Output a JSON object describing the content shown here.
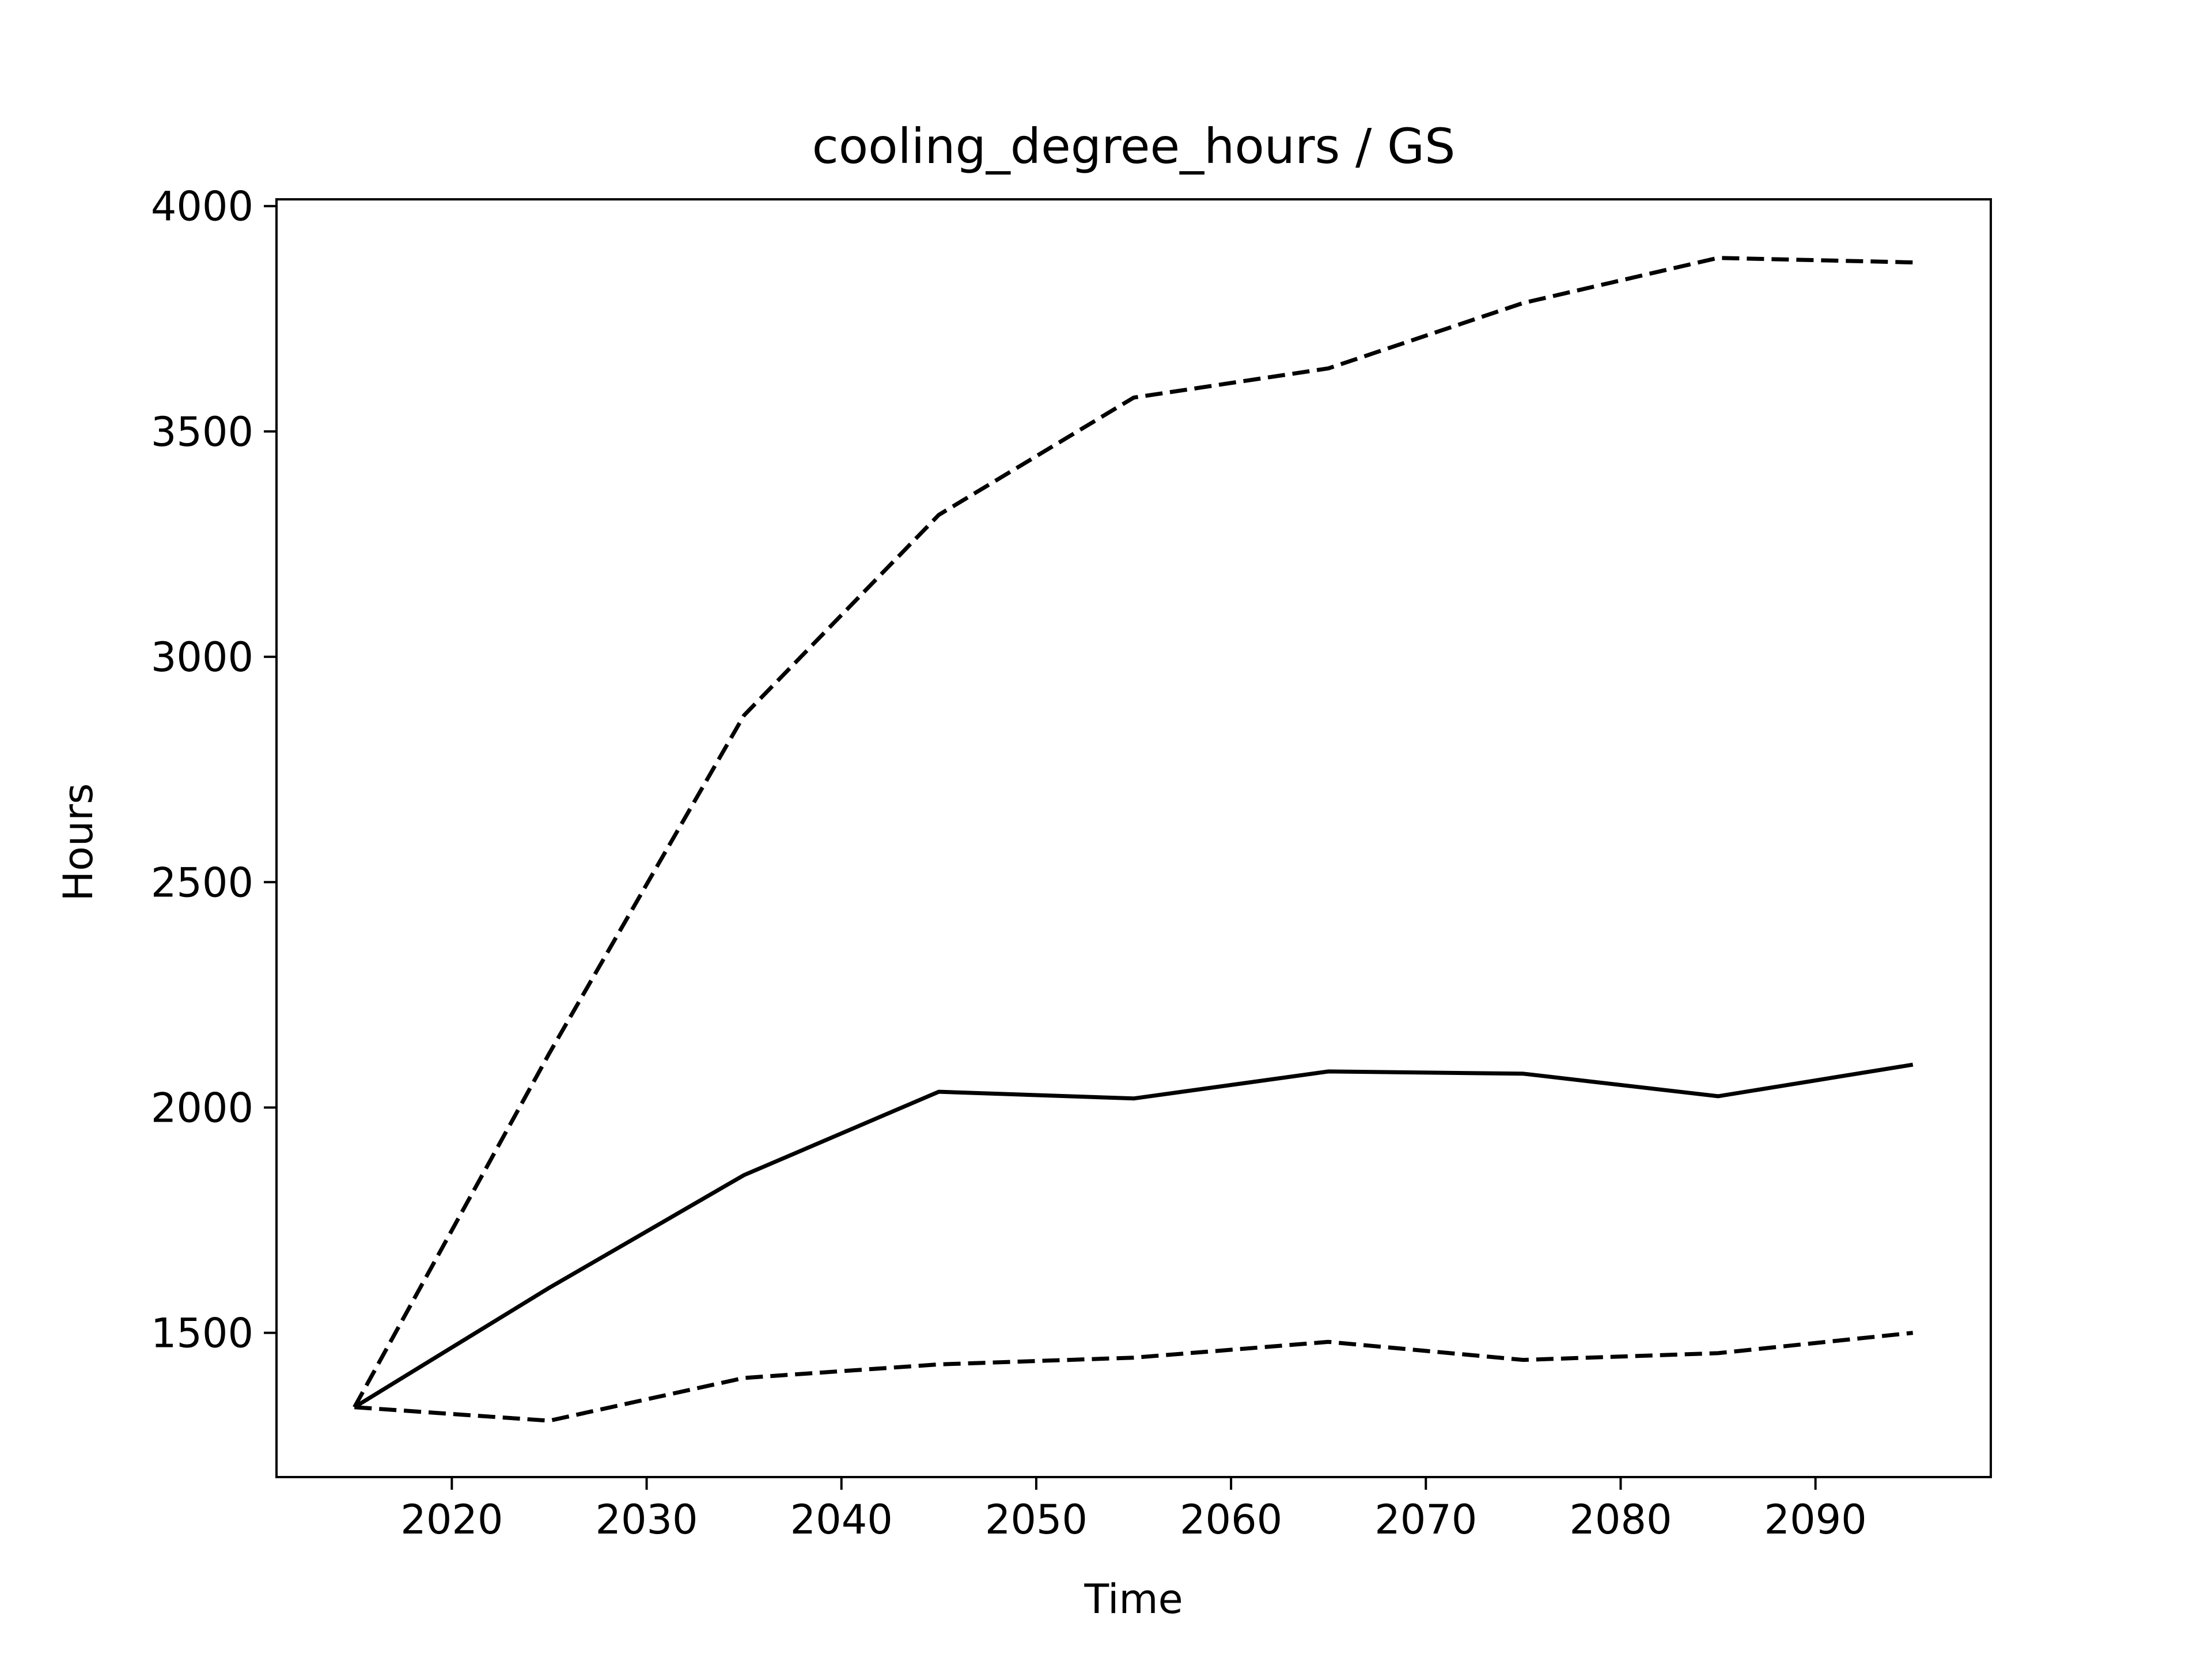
{
  "chart_data": {
    "type": "line",
    "title": "cooling_degree_hours / GS",
    "xlabel": "Time",
    "ylabel": "Hours",
    "xlim": [
      2011,
      2099
    ],
    "ylim": [
      1180,
      4015
    ],
    "xticks": [
      2020,
      2030,
      2040,
      2050,
      2060,
      2070,
      2080,
      2090
    ],
    "yticks": [
      1500,
      2000,
      2500,
      3000,
      3500,
      4000
    ],
    "grid": false,
    "legend": "none",
    "x": [
      2015,
      2025,
      2035,
      2045,
      2055,
      2065,
      2075,
      2085,
      2095
    ],
    "series": [
      {
        "style": "dashed",
        "color": "#000000",
        "values": [
          1335,
          2120,
          2870,
          3315,
          3575,
          3640,
          3785,
          3885,
          3875
        ]
      },
      {
        "style": "solid",
        "color": "#000000",
        "values": [
          1335,
          1600,
          1850,
          2035,
          2020,
          2080,
          2075,
          2025,
          2095
        ]
      },
      {
        "style": "dashed",
        "color": "#000000",
        "values": [
          1335,
          1305,
          1400,
          1430,
          1445,
          1480,
          1440,
          1455,
          1500
        ]
      }
    ]
  }
}
